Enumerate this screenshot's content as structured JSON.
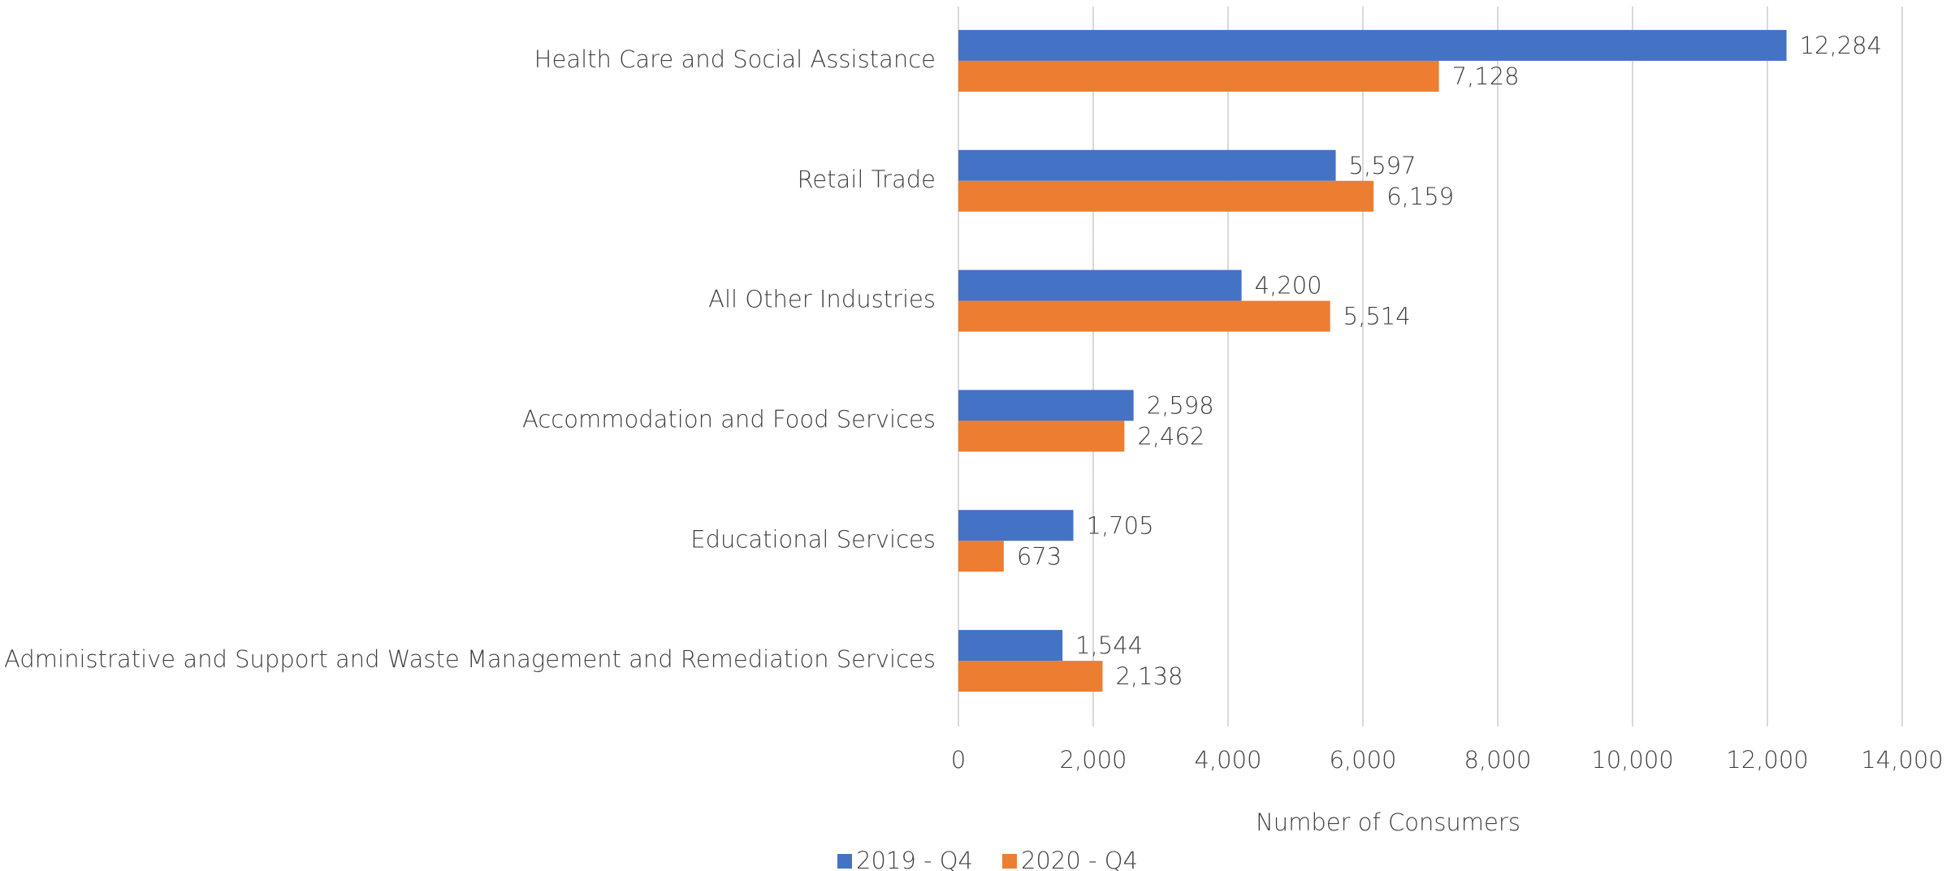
{
  "chart_data": {
    "type": "barh",
    "categories": [
      "Health Care and Social Assistance",
      "Retail Trade",
      "All Other Industries",
      "Accommodation and Food Services",
      "Educational Services",
      "Administrative and Support and Waste Management and Remediation Services"
    ],
    "series": [
      {
        "name": "2019 - Q4",
        "color": "#4472c4",
        "values": [
          12284,
          5597,
          4200,
          2598,
          1705,
          1544
        ],
        "value_labels": [
          "12,284",
          "5,597",
          "4,200",
          "2,598",
          "1,705",
          "1,544"
        ]
      },
      {
        "name": "2020 - Q4",
        "color": "#ed7d31",
        "values": [
          7128,
          6159,
          5514,
          2462,
          673,
          2138
        ],
        "value_labels": [
          "7,128",
          "6,159",
          "5,514",
          "2,462",
          "673",
          "2,138"
        ]
      }
    ],
    "xlabel": "Number of Consumers",
    "xlim": [
      0,
      14000
    ],
    "xticks": [
      0,
      {
        "value": 2000,
        "label": "2,000"
      },
      {
        "value": 4000,
        "label": "4,000"
      },
      {
        "value": 6000,
        "label": "6,000"
      },
      {
        "value": 8000,
        "label": "8,000"
      },
      {
        "value": 10000,
        "label": "10,000"
      },
      {
        "value": 12000,
        "label": "12,000"
      },
      {
        "value": 14000,
        "label": "14,000"
      }
    ],
    "grid": true,
    "legend": "bottom"
  }
}
